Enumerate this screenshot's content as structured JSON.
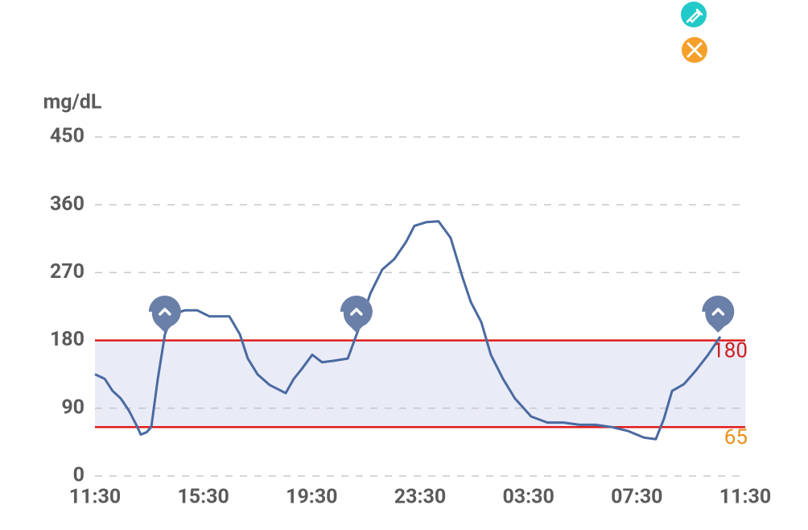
{
  "chart_data": {
    "type": "line",
    "y_label": "mg/dL",
    "x": [
      0,
      0.36,
      0.65,
      0.95,
      1.25,
      1.54,
      1.69,
      1.9,
      2.08,
      2.32,
      2.58,
      2.88,
      3.33,
      3.77,
      4.22,
      4.96,
      5.35,
      5.64,
      6.0,
      6.44,
      7.04,
      7.34,
      7.63,
      8.02,
      8.38,
      8.82,
      9.33,
      9.71,
      10.16,
      10.6,
      11.05,
      11.49,
      11.79,
      12.24,
      12.68,
      13.13,
      13.57,
      13.87,
      14.26,
      14.61,
      15.06,
      15.5,
      16.1,
      16.7,
      17.29,
      17.88,
      18.47,
      19.07,
      19.66,
      20.26,
      20.7,
      21.0,
      21.3,
      21.74,
      22.18,
      22.63,
      23.08
    ],
    "values": [
      135,
      129,
      113,
      103,
      87,
      67,
      55,
      58,
      65,
      129,
      188,
      215,
      220,
      220,
      212,
      212,
      188,
      156,
      135,
      121,
      110,
      129,
      142,
      161,
      151,
      153,
      156,
      193,
      242,
      274,
      288,
      311,
      332,
      337,
      338,
      316,
      263,
      231,
      204,
      161,
      129,
      103,
      79,
      71,
      71,
      68,
      68,
      65,
      60,
      51,
      49,
      76,
      113,
      122,
      140,
      161,
      185
    ],
    "color": "#4a6aa0",
    "xlim": [
      0,
      24
    ],
    "xticks": [
      {
        "value": 0,
        "label": "11:30"
      },
      {
        "value": 4,
        "label": "15:30"
      },
      {
        "value": 8,
        "label": "19:30"
      },
      {
        "value": 12,
        "label": "23:30"
      },
      {
        "value": 16,
        "label": "03:30"
      },
      {
        "value": 20,
        "label": "07:30"
      },
      {
        "value": 24,
        "label": "11:30"
      }
    ],
    "ylim": [
      0,
      450
    ],
    "yticks": [
      0,
      90,
      180,
      270,
      360,
      450
    ],
    "grid": true,
    "target_high": 180,
    "target_high_color": "#cc1f1f",
    "target_low": 65,
    "target_low_color": "#e8901a",
    "target_line_color": "#e01b1b",
    "target_band_color": "#e9ebf7",
    "event_x": [
      2.58,
      9.65,
      23.0
    ],
    "event_color": "#6b80a8"
  }
}
